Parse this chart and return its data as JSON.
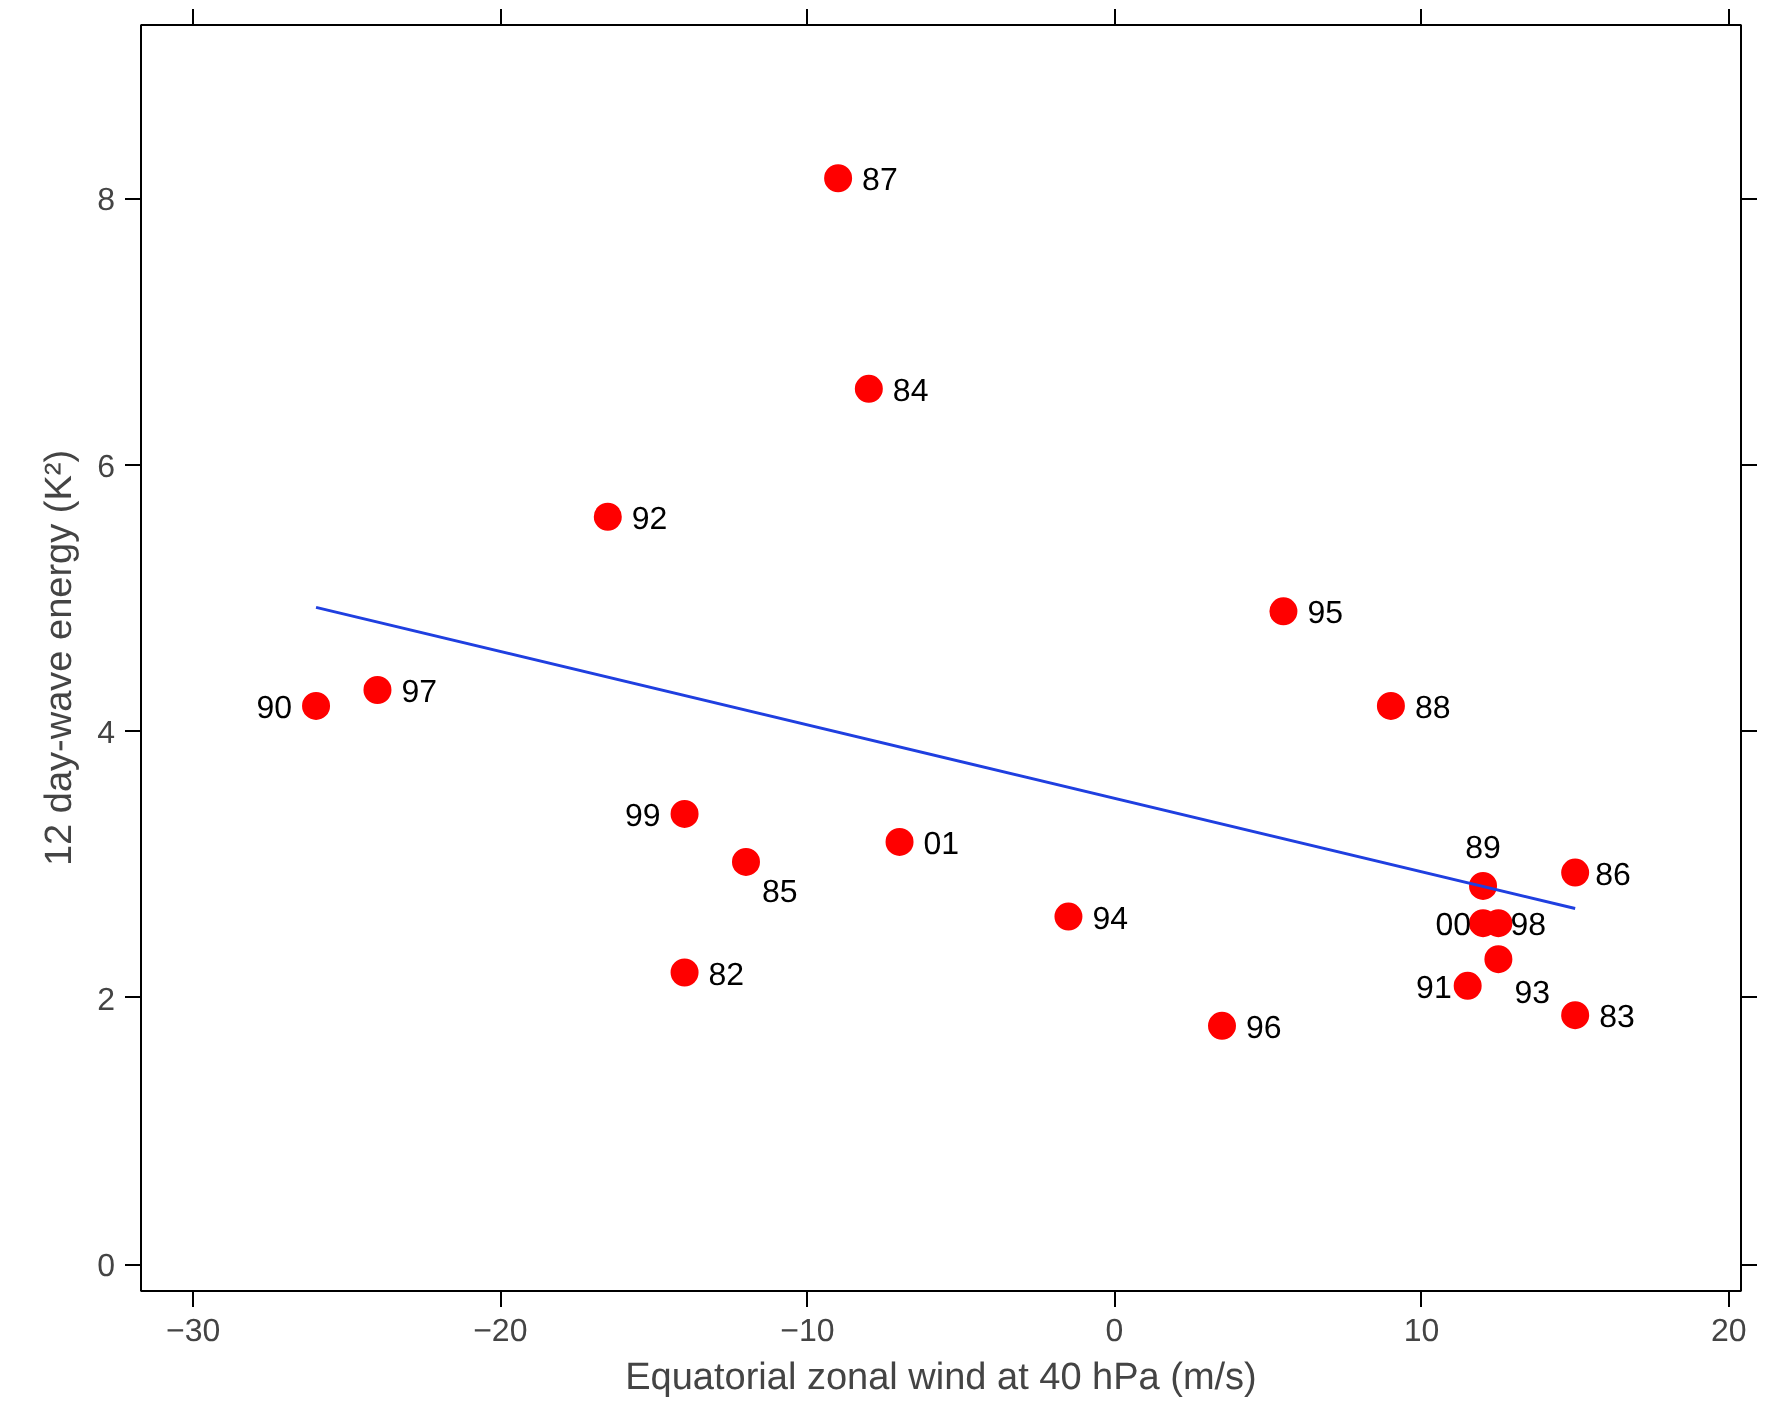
{
  "chart_data": {
    "type": "scatter",
    "xlabel": "Equatorial zonal wind at 40 hPa (m/s)",
    "ylabel": "12 day-wave energy (K²)",
    "xlim": [
      -31.7,
      20.4
    ],
    "ylim": [
      -0.2,
      9.3
    ],
    "xticks": [
      -30,
      -20,
      -10,
      0,
      10,
      20
    ],
    "yticks": [
      0,
      2,
      4,
      6,
      8
    ],
    "grid": false,
    "series": [
      {
        "marker": "circle",
        "color": "#ff0000",
        "x": [
          -9,
          -8,
          -16.5,
          5.5,
          9,
          -26,
          -24,
          -14,
          -12,
          -7,
          -1.5,
          3.5,
          -14,
          12,
          15,
          12,
          12.5,
          12.5,
          11.5,
          15
        ],
        "values": [
          8.15,
          6.57,
          5.61,
          4.9,
          4.19,
          4.19,
          4.31,
          3.38,
          3.02,
          3.17,
          2.61,
          1.79,
          2.19,
          2.84,
          2.94,
          2.56,
          2.56,
          2.29,
          2.09,
          1.87
        ]
      },
      {
        "type": "line",
        "color": "#1f3fe0",
        "x": [
          -26,
          15
        ],
        "values": [
          4.93,
          2.67
        ]
      }
    ],
    "annotations": [
      {
        "text": "87",
        "x": -9,
        "y": 8.15
      },
      {
        "text": "84",
        "x": -8,
        "y": 6.57
      },
      {
        "text": "92",
        "x": -16.5,
        "y": 5.61
      },
      {
        "text": "95",
        "x": 5.5,
        "y": 4.9
      },
      {
        "text": "88",
        "x": 9,
        "y": 4.19
      },
      {
        "text": "90",
        "x": -26,
        "y": 4.19
      },
      {
        "text": "97",
        "x": -24,
        "y": 4.31
      },
      {
        "text": "99",
        "x": -14,
        "y": 3.38
      },
      {
        "text": "85",
        "x": -12,
        "y": 3.02
      },
      {
        "text": "01",
        "x": -7,
        "y": 3.17
      },
      {
        "text": "94",
        "x": -1.5,
        "y": 2.61
      },
      {
        "text": "96",
        "x": 3.5,
        "y": 1.79
      },
      {
        "text": "82",
        "x": -14,
        "y": 2.19
      },
      {
        "text": "89",
        "x": 12,
        "y": 2.84
      },
      {
        "text": "86",
        "x": 15,
        "y": 2.94
      },
      {
        "text": "00",
        "x": 12,
        "y": 2.56
      },
      {
        "text": "98",
        "x": 12.5,
        "y": 2.56
      },
      {
        "text": "93",
        "x": 12.5,
        "y": 2.29
      },
      {
        "text": "91",
        "x": 11.5,
        "y": 2.09
      },
      {
        "text": "83",
        "x": 15,
        "y": 1.87
      }
    ]
  }
}
